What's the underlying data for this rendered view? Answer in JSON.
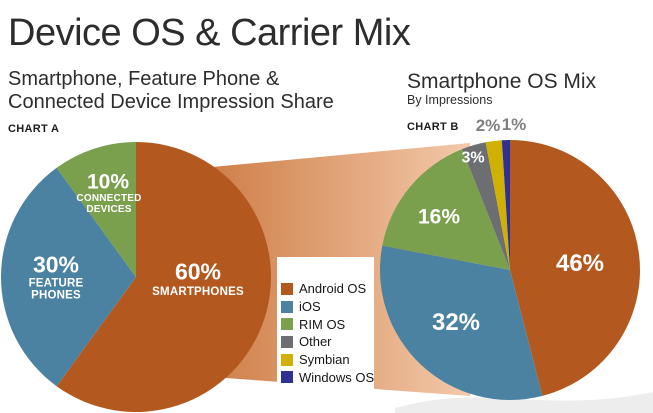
{
  "header": {
    "title": "Device OS & Carrier Mix"
  },
  "chart_a_header": {
    "subtitle_line1": "Smartphone, Feature Phone &",
    "subtitle_line2": "Connected Device Impression Share",
    "chart_label": "CHART A"
  },
  "chart_b_header": {
    "subtitle": "Smartphone OS Mix",
    "subtitle2": "By Impressions",
    "chart_label": "CHART B"
  },
  "chart_data": [
    {
      "type": "pie",
      "title": "Smartphone, Feature Phone & Connected Device Impression Share",
      "chart_label": "CHART A",
      "start_angle": "12 o'clock",
      "direction": "clockwise",
      "slices": [
        {
          "name": "SMARTPHONES",
          "value": 60,
          "label": "60%",
          "color": "#b3591f"
        },
        {
          "name": "FEATURE\nPHONES",
          "value": 30,
          "label": "30%",
          "color": "#4c82a1"
        },
        {
          "name": "CONNECTED\nDEVICES",
          "value": 10,
          "label": "10%",
          "color": "#7aa04e"
        }
      ]
    },
    {
      "type": "pie",
      "title": "Smartphone OS Mix",
      "subtitle": "By Impressions",
      "chart_label": "CHART B",
      "start_angle": "12 o'clock",
      "direction": "clockwise",
      "slices": [
        {
          "name": "Android OS",
          "value": 46,
          "label": "46%",
          "color": "#b3591f"
        },
        {
          "name": "iOS",
          "value": 32,
          "label": "32%",
          "color": "#4c82a1"
        },
        {
          "name": "RIM OS",
          "value": 16,
          "label": "16%",
          "color": "#7aa04e"
        },
        {
          "name": "Other",
          "value": 3,
          "label": "3%",
          "color": "#6d6e71"
        },
        {
          "name": "Symbian",
          "value": 2,
          "label": "2%",
          "color": "#d0b103"
        },
        {
          "name": "Windows OS",
          "value": 1,
          "label": "1%",
          "color": "#2e3192"
        }
      ]
    }
  ],
  "legend": {
    "items": [
      {
        "label": "Android OS",
        "color": "#b3591f"
      },
      {
        "label": "iOS",
        "color": "#4c82a1"
      },
      {
        "label": "RIM OS",
        "color": "#7aa04e"
      },
      {
        "label": "Other",
        "color": "#6d6e71"
      },
      {
        "label": "Symbian",
        "color": "#d0b103"
      },
      {
        "label": "Windows OS",
        "color": "#2e3192"
      }
    ]
  },
  "band": {
    "from": "#cf7f48",
    "to": "#f3c9ab"
  },
  "shadow_color": "#ededed"
}
